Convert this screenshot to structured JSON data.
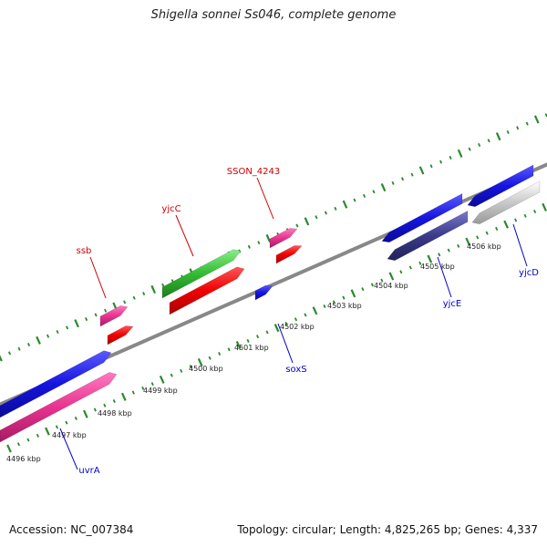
{
  "title": "Shigella sonnei Ss046, complete genome",
  "accession": "Accession: NC_007384",
  "summary": "Topology: circular; Length: 4,825,265 bp; Genes: 4,337",
  "colors": {
    "backbone": "#888888",
    "tick": "#2a8a2a",
    "label_red": "#cc0000",
    "label_blue": "#0000cc"
  },
  "scale_labels": [
    "4496 kbp",
    "4497 kbp",
    "4498 kbp",
    "4499 kbp",
    "4500 kbp",
    "4501 kbp",
    "4502 kbp",
    "4503 kbp",
    "4504 kbp",
    "4505 kbp",
    "4506 kbp"
  ],
  "genes": [
    {
      "name": "ssb",
      "label_color": "#cc0000",
      "color": "#e8338f"
    },
    {
      "name": "yjcC",
      "label_color": "#cc0000",
      "color": "#33bb33"
    },
    {
      "name": "SSON_4243",
      "label_color": "#cc0000",
      "color": "#e8338f"
    },
    {
      "name": "uvrA",
      "label_color": "#0000cc",
      "color": "#e8338f"
    },
    {
      "name": "soxS",
      "label_color": "#0000cc",
      "color": "#1515e0"
    },
    {
      "name": "yjcE",
      "label_color": "#0000cc",
      "color": "#3a3a8a"
    },
    {
      "name": "yjcD",
      "label_color": "#0000cc",
      "color": "#bbbbbb"
    }
  ]
}
